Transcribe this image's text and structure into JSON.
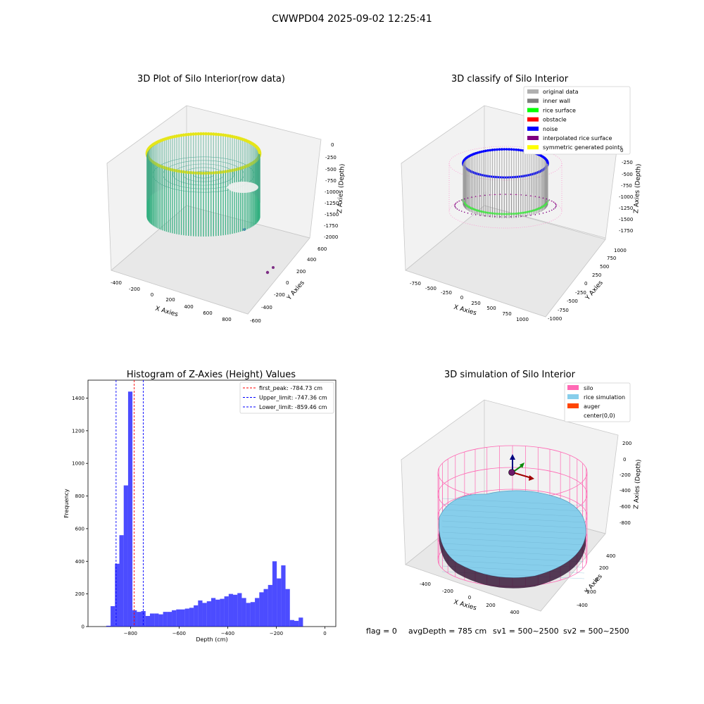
{
  "figure_title": "CWWPD04 2025-09-02 12:25:41",
  "status_line": {
    "flag": "flag = 0",
    "avg_depth": "avgDepth = 785 cm",
    "sv1": "sv1 = 500~2500",
    "sv2": "sv2 = 500~2500"
  },
  "chart_data": [
    {
      "type": "scatter",
      "projection": "3d",
      "title": "3D Plot of Silo Interior(row data)",
      "xlabel": "X Axies",
      "ylabel": "Y Axies",
      "zlabel": "Z Axies (Depth)",
      "xticks": [
        "-400",
        "-200",
        "0",
        "200",
        "400",
        "600",
        "800"
      ],
      "yticks": [
        "-600",
        "-400",
        "-200",
        "0",
        "200",
        "400",
        "600"
      ],
      "zticks": [
        "0",
        "-250",
        "-500",
        "-750",
        "-1000",
        "-1250",
        "-1500",
        "-1750",
        "-2000"
      ],
      "colormap": "viridis",
      "shape": "cylindrical point cloud wall of silo, outliers to far right",
      "wall_color": "#e5e51a",
      "floor_color": "#2aa47e",
      "outlier_colors": [
        "#4a5fa8",
        "#7d2d84"
      ]
    },
    {
      "type": "scatter",
      "projection": "3d",
      "title": "3D classify of Silo Interior",
      "xlabel": "X Axies",
      "ylabel": "Y Axies",
      "zlabel": "Z Axies (Depth)",
      "xticks": [
        "-750",
        "-500",
        "-250",
        "0",
        "250",
        "500",
        "750",
        "1000"
      ],
      "yticks": [
        "-1000",
        "-750",
        "-500",
        "-250",
        "0",
        "250",
        "500",
        "750",
        "1000"
      ],
      "zticks": [
        "0",
        "-250",
        "-500",
        "-750",
        "-1000",
        "-1250",
        "-1500",
        "-1750"
      ],
      "legend_position": "top-right",
      "legend": [
        {
          "label": "original data",
          "color": "#b0b0b0"
        },
        {
          "label": "inner wall",
          "color": "#808080"
        },
        {
          "label": "rice surface",
          "color": "#00ff00"
        },
        {
          "label": "obstacle",
          "color": "#ff0000"
        },
        {
          "label": "noise",
          "color": "#0000ff"
        },
        {
          "label": "interpolated rice surface",
          "color": "#800080"
        },
        {
          "label": "symmetric generated points",
          "color": "#ffff00"
        }
      ]
    },
    {
      "type": "bar",
      "title": "Histogram of Z-Axies (Height) Values",
      "xlabel": "Depth (cm)",
      "ylabel": "Frequency",
      "xlim": [
        -975,
        45
      ],
      "ylim": [
        0,
        1510
      ],
      "xticks": [
        -800,
        -600,
        -400,
        -200,
        0
      ],
      "yticks": [
        0,
        200,
        400,
        600,
        800,
        1000,
        1200,
        1400
      ],
      "bar_color": "#0000ff",
      "bin_width": 18,
      "bin_left_edges": [
        -900,
        -882,
        -864,
        -846,
        -828,
        -810,
        -792,
        -774,
        -756,
        -738,
        -720,
        -702,
        -684,
        -666,
        -648,
        -630,
        -612,
        -594,
        -576,
        -558,
        -540,
        -522,
        -504,
        -486,
        -468,
        -450,
        -432,
        -414,
        -396,
        -378,
        -360,
        -342,
        -324,
        -306,
        -288,
        -270,
        -252,
        -234,
        -216,
        -198,
        -180,
        -162,
        -144,
        -126,
        -108,
        -90,
        -72,
        -54,
        -36,
        -18
      ],
      "frequencies": [
        5,
        125,
        385,
        560,
        865,
        1440,
        100,
        90,
        95,
        65,
        80,
        80,
        75,
        90,
        90,
        100,
        105,
        105,
        110,
        115,
        130,
        160,
        145,
        155,
        175,
        165,
        170,
        185,
        200,
        195,
        205,
        175,
        145,
        150,
        175,
        210,
        230,
        255,
        400,
        295,
        375,
        230,
        40,
        35,
        55,
        0,
        0,
        0,
        0,
        0
      ],
      "reference_lines": [
        {
          "label": "first_peak: -784.73 cm",
          "x": -784.73,
          "color": "#ff0000"
        },
        {
          "label": "Upper_limit: -747.36 cm",
          "x": -747.36,
          "color": "#0000ff"
        },
        {
          "label": "Lower_limit: -859.46 cm",
          "x": -859.46,
          "color": "#0000ff"
        }
      ],
      "legend_position": "top-right"
    },
    {
      "type": "surface",
      "projection": "3d",
      "title": "3D simulation of Silo Interior",
      "xlabel": "X Axies",
      "ylabel": "Y Axies",
      "zlabel": "Z Axies (Depth)",
      "xticks": [
        "-400",
        "-200",
        "0",
        "200",
        "400"
      ],
      "yticks": [
        "-400",
        "-200",
        "0",
        "200",
        "400"
      ],
      "zticks": [
        "200",
        "0",
        "-200",
        "-400",
        "-600",
        "-800"
      ],
      "legend_position": "top-right",
      "legend": [
        {
          "label": "silo",
          "color": "#ff69b4"
        },
        {
          "label": "rice simulation",
          "color": "#87ceeb"
        },
        {
          "label": "auger",
          "color": "#ff4500"
        },
        {
          "label": "center(0,0)",
          "color": "#ffffff"
        }
      ]
    }
  ]
}
